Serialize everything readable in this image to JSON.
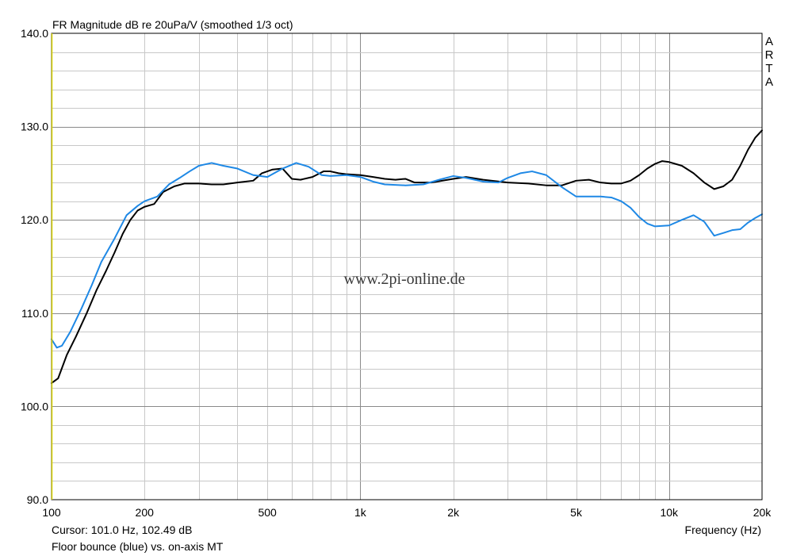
{
  "chart_data": {
    "type": "line",
    "title": "FR Magnitude dB re 20uPa/V (smoothed 1/3 oct)",
    "xlabel": "Frequency (Hz)",
    "ylabel": "",
    "xscale": "log",
    "xlim": [
      100,
      20000
    ],
    "ylim": [
      90,
      140
    ],
    "grid": true,
    "x_tick_labels": [
      {
        "value": 100,
        "label": "100"
      },
      {
        "value": 200,
        "label": "200"
      },
      {
        "value": 500,
        "label": "500"
      },
      {
        "value": 1000,
        "label": "1k"
      },
      {
        "value": 2000,
        "label": "2k"
      },
      {
        "value": 5000,
        "label": "5k"
      },
      {
        "value": 10000,
        "label": "10k"
      },
      {
        "value": 20000,
        "label": "20k"
      }
    ],
    "y_ticks": [
      90,
      100,
      110,
      120,
      130,
      140
    ],
    "y_tick_labels": [
      "90.0",
      "100.0",
      "110.0",
      "120.0",
      "130.0",
      "140.0"
    ],
    "watermark": "www.2pi-online.de",
    "side_label": "ARTA",
    "cursor_text": "Cursor: 101.0 Hz, 102.49 dB",
    "caption": "Floor bounce (blue) vs. on-axis MT",
    "series": [
      {
        "color": "#000000",
        "x": [
          100,
          105,
          112,
          120,
          130,
          140,
          150,
          160,
          170,
          180,
          190,
          200,
          215,
          230,
          250,
          270,
          300,
          330,
          360,
          400,
          450,
          480,
          520,
          560,
          600,
          640,
          700,
          760,
          800,
          850,
          900,
          1000,
          1100,
          1200,
          1300,
          1400,
          1500,
          1700,
          2000,
          2200,
          2500,
          3000,
          3500,
          4000,
          4500,
          5000,
          5500,
          6000,
          6500,
          7000,
          7500,
          8000,
          8500,
          9000,
          9500,
          10000,
          11000,
          12000,
          13000,
          14000,
          15000,
          16000,
          17000,
          18000,
          19000,
          20000
        ],
        "y": [
          102.5,
          103.0,
          105.5,
          107.5,
          110.0,
          112.5,
          114.5,
          116.5,
          118.5,
          120.0,
          121.0,
          121.4,
          121.7,
          123.0,
          123.6,
          123.9,
          123.9,
          123.8,
          123.8,
          124.0,
          124.2,
          125.0,
          125.4,
          125.5,
          124.4,
          124.3,
          124.6,
          125.2,
          125.2,
          125.0,
          124.9,
          124.8,
          124.6,
          124.4,
          124.3,
          124.4,
          124.0,
          124.0,
          124.4,
          124.6,
          124.3,
          124.0,
          123.9,
          123.7,
          123.7,
          124.2,
          124.3,
          124.0,
          123.9,
          123.9,
          124.2,
          124.8,
          125.5,
          126.0,
          126.3,
          126.2,
          125.8,
          125.0,
          124.0,
          123.3,
          123.6,
          124.3,
          125.8,
          127.5,
          128.8,
          129.6
        ]
      },
      {
        "color": "#1e88e5",
        "x": [
          100,
          104,
          108,
          115,
          125,
          135,
          145,
          160,
          175,
          190,
          200,
          220,
          240,
          260,
          280,
          300,
          330,
          360,
          400,
          450,
          500,
          560,
          620,
          680,
          750,
          800,
          900,
          1000,
          1100,
          1200,
          1400,
          1600,
          1800,
          2000,
          2200,
          2500,
          2800,
          3000,
          3300,
          3600,
          4000,
          4500,
          5000,
          6000,
          6500,
          7000,
          7500,
          8000,
          8500,
          9000,
          10000,
          11000,
          12000,
          13000,
          14000,
          15000,
          16000,
          17000,
          18000,
          19000,
          20000
        ],
        "y": [
          107.2,
          106.3,
          106.5,
          108.0,
          110.5,
          113.0,
          115.5,
          118.0,
          120.5,
          121.5,
          122.0,
          122.5,
          123.8,
          124.5,
          125.2,
          125.8,
          126.1,
          125.8,
          125.5,
          124.8,
          124.6,
          125.5,
          126.1,
          125.7,
          124.8,
          124.7,
          124.8,
          124.6,
          124.1,
          123.8,
          123.7,
          123.8,
          124.3,
          124.7,
          124.5,
          124.1,
          124.0,
          124.5,
          125.0,
          125.2,
          124.8,
          123.5,
          122.5,
          122.5,
          122.4,
          122.0,
          121.3,
          120.3,
          119.6,
          119.3,
          119.4,
          120.0,
          120.5,
          119.8,
          118.3,
          118.6,
          118.9,
          119.0,
          119.7,
          120.2,
          120.6
        ]
      }
    ]
  }
}
